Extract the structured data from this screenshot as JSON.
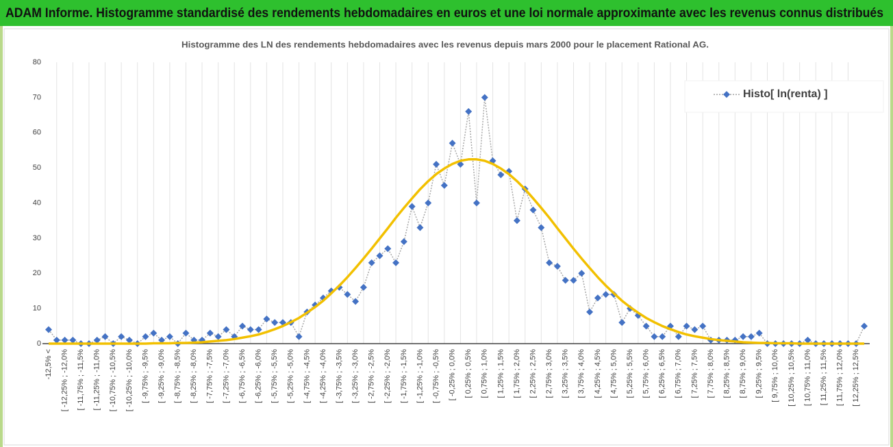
{
  "chart_data": {
    "type": "line",
    "header": "ADAM Informe. Histogramme standardisé des rendements hebdomadaires en euros et une loi normale approximante avec les revenus connus distribués",
    "title": "Histogramme des LN des rendements hebdomadaires avec les revenus depuis mars 2000 pour le placement Rational AG.",
    "categories": [
      "-12,5% <",
      null,
      "[ -12,25% ; -12,0%",
      null,
      "[ -11,75% ; -11,5%",
      null,
      "[ -11,25% ; -11,0%",
      null,
      "[ -10,75% ; -10,5%",
      null,
      "[ -10,25% ; -10,0%",
      null,
      "[ -9,75% ; -9,5%",
      null,
      "[ -9,25% ; -9,0%",
      null,
      "[ -8,75% ; -8,5%",
      null,
      "[ -8,25% ; -8,0%",
      null,
      "[ -7,75% ; -7,5%",
      null,
      "[ -7,25% ; -7,0%",
      null,
      "[ -6,75% ; -6,5%",
      null,
      "[ -6,25% ; -6,0%",
      null,
      "[ -5,75% ; -5,5%",
      null,
      "[ -5,25% ; -5,0%",
      null,
      "[ -4,75% ; -4,5%",
      null,
      "[ -4,25% ; -4,0%",
      null,
      "[ -3,75% ; -3,5%",
      null,
      "[ -3,25% ; -3,0%",
      null,
      "[ -2,75% ; -2,5%",
      null,
      "[ -2,25% ; -2,0%",
      null,
      "[ -1,75% ; -1,5%",
      null,
      "[ -1,25% ; -1,0%",
      null,
      "[ -0,75% ; -0,5%",
      null,
      "[ -0,25% ; 0,0%",
      null,
      "[ 0,25% ; 0,5%",
      null,
      "[ 0,75% ; 1,0%",
      null,
      "[ 1,25% ; 1,5%",
      null,
      "[ 1,75% ; 2,0%",
      null,
      "[ 2,25% ; 2,5%",
      null,
      "[ 2,75% ; 3,0%",
      null,
      "[ 3,25% ; 3,5%",
      null,
      "[ 3,75% ; 4,0%",
      null,
      "[ 4,25% ; 4,5%",
      null,
      "[ 4,75% ; 5,0%",
      null,
      "[ 5,25% ; 5,5%",
      null,
      "[ 5,75% ; 6,0%",
      null,
      "[ 6,25% ; 6,5%",
      null,
      "[ 6,75% ; 7,0%",
      null,
      "[ 7,25% ; 7,5%",
      null,
      "[ 7,75% ; 8,0%",
      null,
      "[ 8,25% ; 8,5%",
      null,
      "[ 8,75% ; 9,0%",
      null,
      "[ 9,25% ; 9,5%",
      null,
      "[ 9,75% ; 10,0%",
      null,
      "[ 10,25% ; 10,5%",
      null,
      "[ 10,75% ; 11,0%",
      null,
      "[ 11,25% ; 11,5%",
      null,
      "[ 11,75% ; 12,0%",
      null,
      "[ 12,25% ; 12,5%",
      null
    ],
    "series": [
      {
        "name": "Histo[ ln(renta) ]",
        "color": "#4472c4",
        "line_color": "#a6a6a6",
        "marker": "diamond",
        "values": [
          4,
          1,
          1,
          1,
          0,
          0,
          1,
          2,
          0,
          2,
          1,
          0,
          2,
          3,
          1,
          2,
          0,
          3,
          1,
          1,
          3,
          2,
          4,
          2,
          5,
          4,
          4,
          7,
          6,
          6,
          6,
          2,
          9,
          11,
          13,
          15,
          16,
          14,
          12,
          16,
          23,
          25,
          27,
          23,
          29,
          39,
          33,
          40,
          51,
          45,
          57,
          51,
          66,
          40,
          70,
          52,
          48,
          49,
          35,
          44,
          38,
          33,
          23,
          22,
          18,
          18,
          20,
          9,
          13,
          14,
          14,
          6,
          10,
          8,
          5,
          2,
          2,
          5,
          2,
          5,
          4,
          5,
          1,
          1,
          1,
          1,
          2,
          2,
          3,
          0,
          0,
          0,
          0,
          0,
          1,
          0,
          0,
          0,
          0,
          0,
          0,
          5
        ]
      },
      {
        "color": "#f2c000",
        "marker": "none",
        "values": [
          0,
          0,
          0,
          0,
          0,
          0,
          0,
          0,
          0,
          0,
          0,
          0,
          0,
          0.1,
          0.1,
          0.1,
          0.2,
          0.2,
          0.3,
          0.4,
          0.6,
          0.8,
          1.0,
          1.3,
          1.7,
          2.1,
          2.6,
          3.3,
          4.1,
          5.0,
          6.1,
          7.3,
          8.8,
          10.4,
          12.2,
          14.3,
          16.5,
          18.9,
          21.5,
          24.2,
          27.0,
          29.9,
          32.8,
          35.8,
          38.6,
          41.3,
          43.9,
          46.2,
          48.2,
          49.8,
          51.1,
          52.0,
          52.4,
          52.4,
          52.0,
          51.1,
          49.8,
          48.2,
          46.2,
          43.9,
          41.3,
          38.6,
          35.8,
          32.8,
          29.9,
          27.0,
          24.2,
          21.5,
          18.9,
          16.5,
          14.3,
          12.2,
          10.4,
          8.8,
          7.3,
          6.1,
          5.0,
          4.1,
          3.3,
          2.6,
          2.1,
          1.7,
          1.3,
          1.0,
          0.8,
          0.6,
          0.4,
          0.3,
          0.2,
          0.2,
          0.1,
          0.1,
          0.1,
          0,
          0,
          0,
          0,
          0,
          0,
          0,
          0,
          0
        ]
      }
    ],
    "ylim": [
      0,
      80
    ],
    "yticks": [
      0,
      10,
      20,
      30,
      40,
      50,
      60,
      70,
      80
    ],
    "legend": "top-right"
  }
}
